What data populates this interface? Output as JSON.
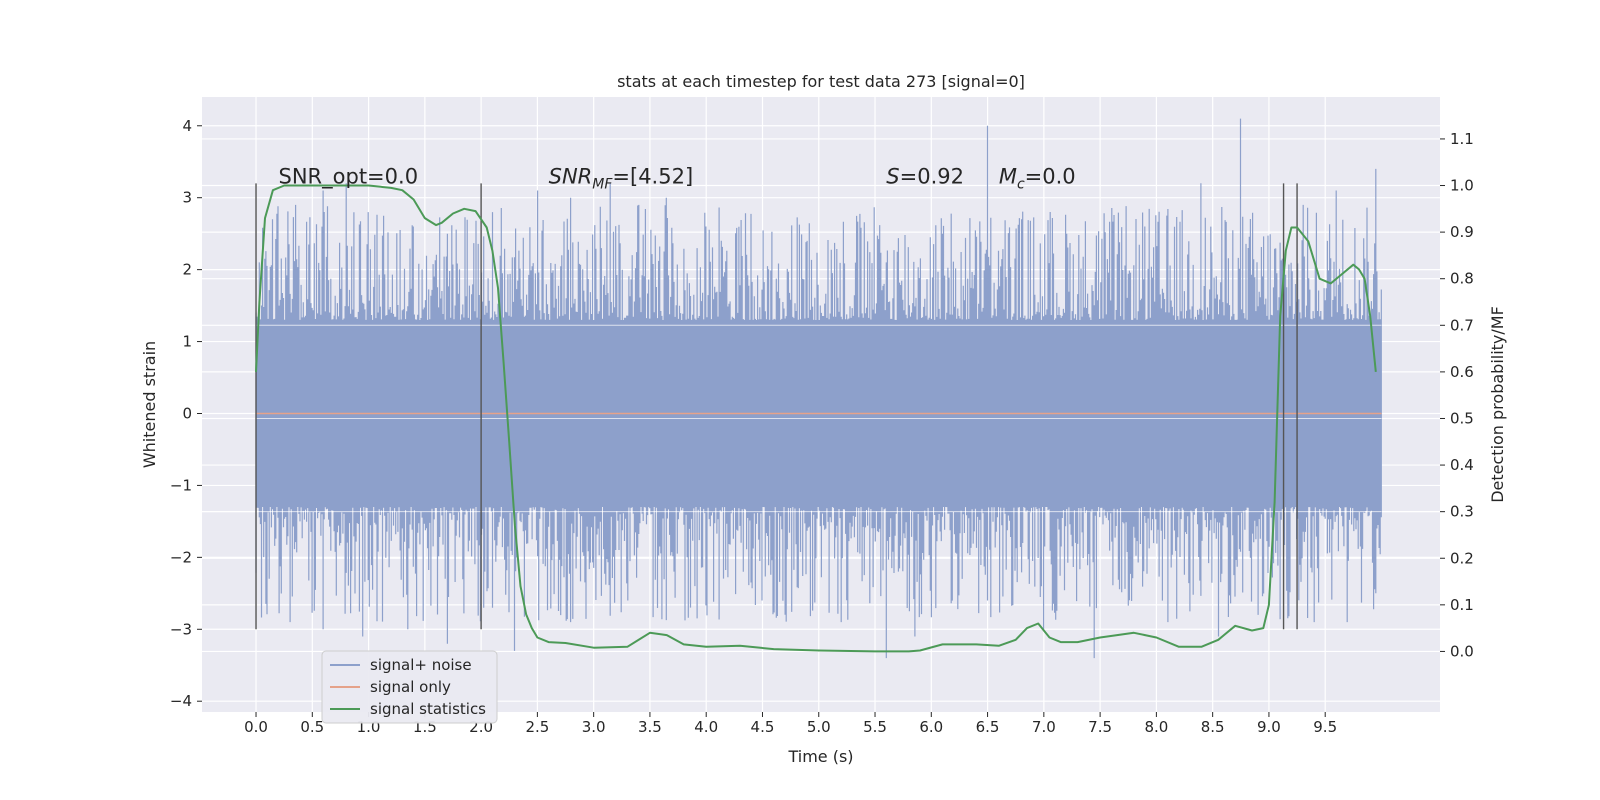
{
  "chart_data": {
    "type": "line",
    "title": "stats at each timestep for test data 273 [signal=0]",
    "xlabel": "Time (s)",
    "ylabel": "Whitened strain",
    "y2label": "Detection probability/MF",
    "xlim": [
      -0.48,
      10.52
    ],
    "ylim": [
      -4.15,
      4.4
    ],
    "y2lim": [
      -0.13,
      1.19
    ],
    "x_ticks": [
      "0.0",
      "0.5",
      "1.0",
      "1.5",
      "2.0",
      "2.5",
      "3.0",
      "3.5",
      "4.0",
      "4.5",
      "5.0",
      "5.5",
      "6.0",
      "6.5",
      "7.0",
      "7.5",
      "8.0",
      "8.5",
      "9.0",
      "9.5"
    ],
    "y_ticks": [
      "4",
      "3",
      "2",
      "1",
      "0",
      "−1",
      "−2",
      "−3",
      "−4"
    ],
    "y2_ticks": [
      "1.1",
      "1.0",
      "0.9",
      "0.8",
      "0.7",
      "0.6",
      "0.5",
      "0.4",
      "0.3",
      "0.2",
      "0.1",
      "0.0"
    ],
    "grid": true,
    "legend_position": "lower-left",
    "annotations": {
      "snr_opt": "SNR_opt=0.0",
      "snr_mf_main": "SNR",
      "snr_mf_sub": "MF",
      "snr_mf_value": "=[4.52]",
      "s_var": "S",
      "s_value": "=0.92",
      "mc_var": "M",
      "mc_sub": "c",
      "mc_value": "=0.0"
    },
    "vertical_markers": [
      0.0,
      2.0,
      9.13,
      9.25
    ],
    "vertical_marker_range": [
      -3.0,
      3.2
    ],
    "series": [
      {
        "name": "signal+ noise",
        "color": "#8da0cb",
        "x_range": [
          0.0,
          10.0
        ],
        "band_y": [
          -1.3,
          1.3
        ],
        "peaks_y": [
          [
            0.15,
            2.7
          ],
          [
            0.35,
            2.9
          ],
          [
            0.6,
            3.1
          ],
          [
            0.8,
            3.2
          ],
          [
            1.0,
            2.8
          ],
          [
            1.4,
            2.6
          ],
          [
            1.7,
            2.5
          ],
          [
            2.1,
            2.8
          ],
          [
            2.5,
            3.1
          ],
          [
            2.8,
            3.0
          ],
          [
            3.15,
            3.2
          ],
          [
            3.4,
            2.9
          ],
          [
            3.65,
            3.0
          ],
          [
            4.0,
            2.6
          ],
          [
            4.4,
            2.6
          ],
          [
            4.9,
            2.4
          ],
          [
            5.6,
            2.1
          ],
          [
            6.1,
            2.5
          ],
          [
            6.5,
            4.0
          ],
          [
            6.8,
            2.7
          ],
          [
            7.2,
            2.5
          ],
          [
            7.9,
            2.6
          ],
          [
            8.4,
            3.2
          ],
          [
            8.75,
            4.1
          ],
          [
            9.3,
            2.9
          ],
          [
            9.6,
            3.1
          ],
          [
            9.95,
            3.4
          ]
        ],
        "troughs_y": [
          [
            0.1,
            -2.6
          ],
          [
            0.3,
            -2.9
          ],
          [
            0.6,
            -3.0
          ],
          [
            0.95,
            -3.1
          ],
          [
            1.35,
            -3.0
          ],
          [
            1.7,
            -3.2
          ],
          [
            2.1,
            -2.7
          ],
          [
            2.3,
            -3.3
          ],
          [
            2.8,
            -2.9
          ],
          [
            3.3,
            -2.6
          ],
          [
            3.9,
            -2.4
          ],
          [
            4.5,
            -2.6
          ],
          [
            5.2,
            -2.9
          ],
          [
            5.6,
            -3.4
          ],
          [
            5.85,
            -3.1
          ],
          [
            6.5,
            -2.6
          ],
          [
            7.0,
            -3.0
          ],
          [
            7.45,
            -3.4
          ],
          [
            8.1,
            -2.9
          ],
          [
            8.55,
            -3.1
          ],
          [
            8.9,
            -2.8
          ],
          [
            9.4,
            -2.9
          ],
          [
            9.7,
            -2.9
          ],
          [
            9.95,
            -2.5
          ]
        ]
      },
      {
        "name": "signal only",
        "color": "#e5a28a",
        "x": [
          0.0,
          10.0
        ],
        "y": [
          0.0,
          0.0
        ]
      },
      {
        "name": "signal statistics",
        "color": "#4c9a57",
        "axis": "right",
        "x": [
          0.0,
          0.03,
          0.08,
          0.15,
          0.25,
          0.4,
          0.6,
          0.8,
          1.0,
          1.2,
          1.3,
          1.4,
          1.5,
          1.6,
          1.65,
          1.75,
          1.85,
          1.95,
          2.05,
          2.1,
          2.15,
          2.2,
          2.25,
          2.3,
          2.35,
          2.4,
          2.45,
          2.5,
          2.6,
          2.75,
          3.0,
          3.3,
          3.5,
          3.65,
          3.8,
          4.0,
          4.3,
          4.6,
          5.0,
          5.5,
          5.8,
          5.9,
          6.1,
          6.4,
          6.6,
          6.75,
          6.85,
          6.95,
          7.05,
          7.15,
          7.3,
          7.5,
          7.8,
          8.0,
          8.2,
          8.4,
          8.55,
          8.7,
          8.85,
          8.95,
          9.0,
          9.05,
          9.1,
          9.15,
          9.2,
          9.25,
          9.35,
          9.45,
          9.55,
          9.65,
          9.75,
          9.8,
          9.85,
          9.9,
          9.95
        ],
        "y": [
          0.6,
          0.75,
          0.93,
          0.99,
          1.0,
          1.0,
          1.0,
          1.0,
          1.0,
          0.995,
          0.99,
          0.97,
          0.93,
          0.915,
          0.92,
          0.94,
          0.95,
          0.945,
          0.91,
          0.86,
          0.78,
          0.62,
          0.45,
          0.27,
          0.14,
          0.08,
          0.05,
          0.03,
          0.02,
          0.018,
          0.008,
          0.01,
          0.04,
          0.035,
          0.015,
          0.01,
          0.012,
          0.005,
          0.002,
          0.0,
          0.0,
          0.002,
          0.015,
          0.015,
          0.012,
          0.025,
          0.05,
          0.06,
          0.03,
          0.02,
          0.02,
          0.03,
          0.04,
          0.03,
          0.01,
          0.01,
          0.025,
          0.055,
          0.045,
          0.05,
          0.1,
          0.32,
          0.72,
          0.86,
          0.91,
          0.91,
          0.88,
          0.8,
          0.79,
          0.81,
          0.83,
          0.82,
          0.8,
          0.72,
          0.6
        ]
      }
    ]
  }
}
